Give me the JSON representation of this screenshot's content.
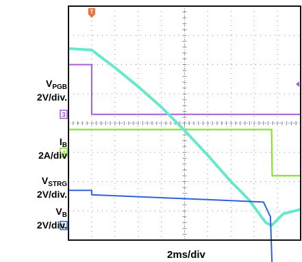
{
  "labels": {
    "vpgb": {
      "main": "V",
      "sub": "PGB",
      "scale": "2V/div."
    },
    "ib": {
      "main": "I",
      "sub": "B",
      "scale": "2A/div"
    },
    "vstrg": {
      "main": "V",
      "sub": "STRG",
      "scale": "2V/div."
    },
    "vb": {
      "main": "V",
      "sub": "B",
      "scale": "2V/div."
    }
  },
  "xlabel": "2ms/div",
  "trigger_marker": "T",
  "channel_markers": [
    "3",
    "4",
    "1"
  ],
  "chart_data": {
    "type": "line",
    "xlabel": "2ms/div",
    "x_unit": "ms",
    "xlim": [
      0,
      20
    ],
    "ylim_divisions": [
      -4,
      4
    ],
    "grid": true,
    "trigger_time_ms": 2.0,
    "series": [
      {
        "name": "VPGB",
        "scale": "2V/div.",
        "color": "#a45bd6",
        "channel": "3",
        "points": [
          [
            0,
            2.0
          ],
          [
            2.0,
            2.0
          ],
          [
            2.0,
            0.3
          ],
          [
            20,
            0.3
          ]
        ]
      },
      {
        "name": "IB",
        "scale": "2A/div",
        "color": "#83e52a",
        "channel": "4",
        "points": [
          [
            0,
            -0.22
          ],
          [
            9.2,
            -0.22
          ],
          [
            17.5,
            -0.22
          ],
          [
            17.55,
            -1.8
          ],
          [
            20,
            -1.8
          ]
        ]
      },
      {
        "name": "VSTRG",
        "scale": "2V/div.",
        "color": "#66e8cc",
        "points": [
          [
            0,
            2.55
          ],
          [
            2.0,
            2.5
          ],
          [
            4.0,
            1.9
          ],
          [
            6.0,
            1.25
          ],
          [
            8.0,
            0.55
          ],
          [
            10.0,
            -0.25
          ],
          [
            12.0,
            -1.1
          ],
          [
            14.0,
            -2.0
          ],
          [
            15.5,
            -2.6
          ],
          [
            17.0,
            -3.4
          ],
          [
            17.5,
            -3.5
          ],
          [
            18.5,
            -3.1
          ],
          [
            20,
            -2.95
          ]
        ]
      },
      {
        "name": "VB",
        "scale": "2V/div.",
        "color": "#2f5fdc",
        "channel": "1",
        "points": [
          [
            0,
            -2.3
          ],
          [
            2.0,
            -2.3
          ],
          [
            2.0,
            -2.45
          ],
          [
            8.0,
            -2.55
          ],
          [
            14.0,
            -2.65
          ],
          [
            16.8,
            -2.7
          ],
          [
            17.4,
            -3.2
          ],
          [
            17.55,
            -5.0
          ],
          [
            20,
            -5.0
          ]
        ]
      }
    ]
  }
}
